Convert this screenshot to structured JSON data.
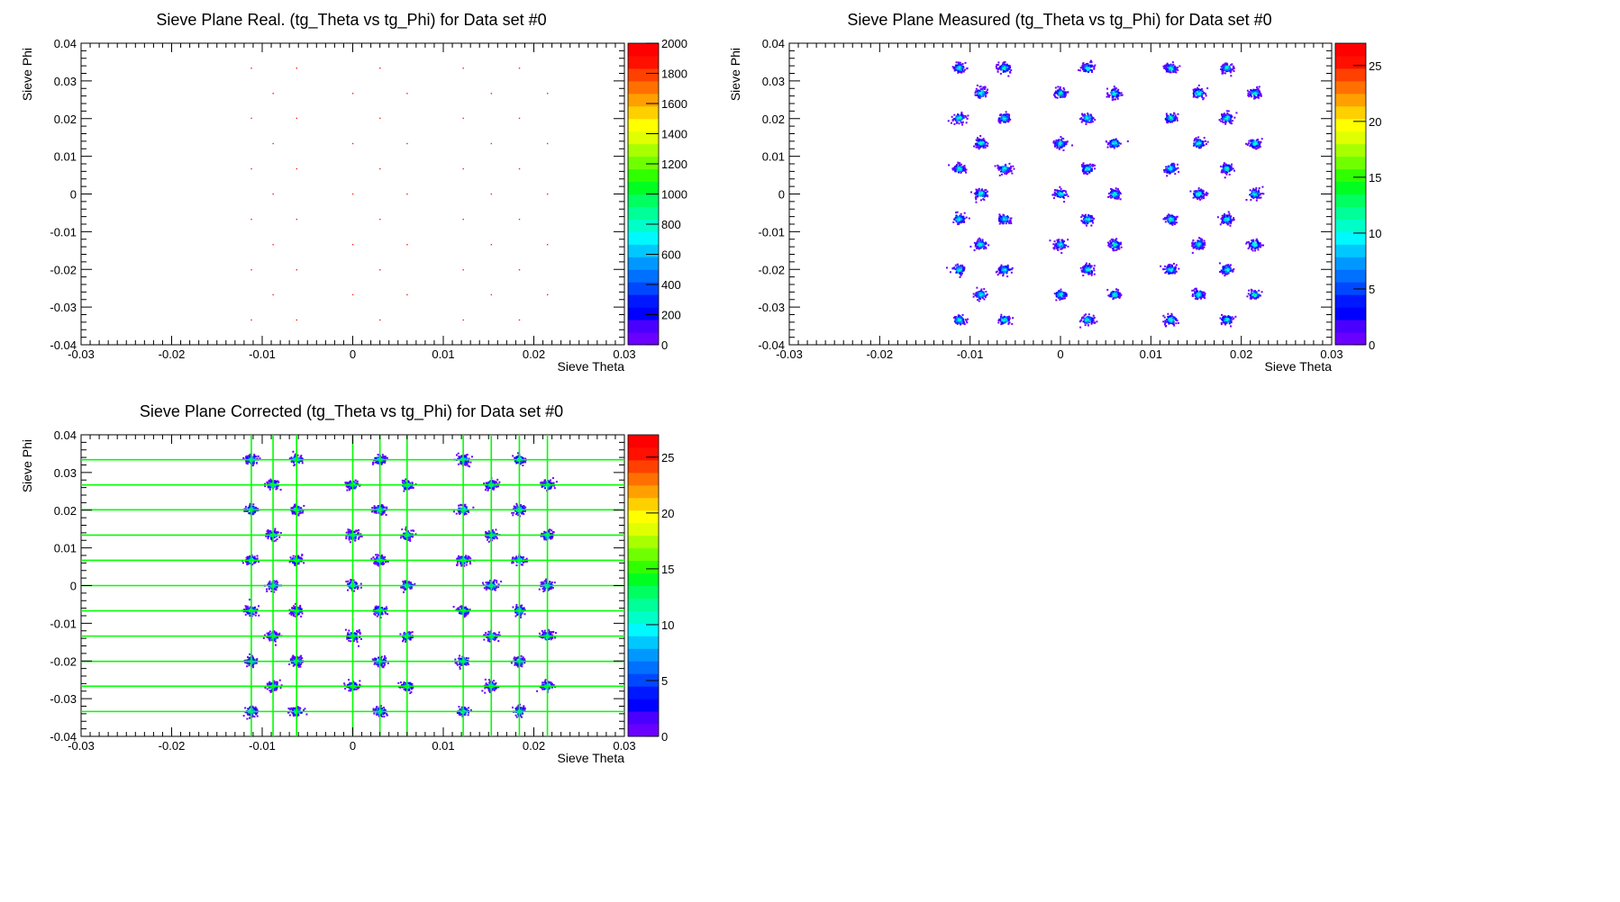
{
  "chart_data": [
    {
      "type": "heatmap",
      "title": "Sieve Plane Real. (tg_Theta vs tg_Phi) for Data set #0",
      "xlabel": "Sieve Theta",
      "ylabel": "Sieve Phi",
      "xlim": [
        -0.03,
        0.03
      ],
      "ylim": [
        -0.04,
        0.04
      ],
      "x_ticks": [
        "-0.03",
        "-0.02",
        "-0.01",
        "0",
        "0.01",
        "0.02",
        "0.03"
      ],
      "y_ticks": [
        "-0.04",
        "-0.03",
        "-0.02",
        "-0.01",
        "0",
        "0.01",
        "0.02",
        "0.03",
        "0.04"
      ],
      "z_range": [
        0,
        2000
      ],
      "z_ticks": [
        "0",
        "200",
        "400",
        "600",
        "800",
        "1000",
        "1200",
        "1400",
        "1600",
        "1800",
        "2000"
      ],
      "hole_theta": [
        -0.0112,
        -0.0088,
        -0.0062,
        0.0,
        0.003,
        0.006,
        0.0122,
        0.0153,
        0.0184,
        0.0215
      ],
      "hole_phi": [
        0.0334,
        0.0267,
        0.0201,
        0.0134,
        0.0067,
        0.0,
        -0.0067,
        -0.0134,
        -0.0201,
        -0.0267,
        -0.0334
      ],
      "marker": "point",
      "lines": false
    },
    {
      "type": "heatmap",
      "title": "Sieve Plane Measured (tg_Theta vs tg_Phi) for Data set #0",
      "xlabel": "Sieve Theta",
      "ylabel": "Sieve Phi",
      "xlim": [
        -0.03,
        0.03
      ],
      "ylim": [
        -0.04,
        0.04
      ],
      "x_ticks": [
        "-0.03",
        "-0.02",
        "-0.01",
        "0",
        "0.01",
        "0.02",
        "0.03"
      ],
      "y_ticks": [
        "-0.04",
        "-0.03",
        "-0.02",
        "-0.01",
        "0",
        "0.01",
        "0.02",
        "0.03",
        "0.04"
      ],
      "z_range": [
        0,
        27
      ],
      "z_ticks": [
        "0",
        "5",
        "10",
        "15",
        "20",
        "25"
      ],
      "hole_theta": [
        -0.0112,
        -0.0088,
        -0.0062,
        0.0,
        0.003,
        0.006,
        0.0122,
        0.0153,
        0.0184,
        0.0215
      ],
      "hole_phi": [
        0.0334,
        0.0267,
        0.0201,
        0.0134,
        0.0067,
        0.0,
        -0.0067,
        -0.0134,
        -0.0201,
        -0.0267,
        -0.0334
      ],
      "marker": "blob",
      "lines": false
    },
    {
      "type": "heatmap",
      "title": "Sieve Plane Corrected (tg_Theta vs tg_Phi) for Data set #0",
      "xlabel": "Sieve Theta",
      "ylabel": "Sieve Phi",
      "xlim": [
        -0.03,
        0.03
      ],
      "ylim": [
        -0.04,
        0.04
      ],
      "x_ticks": [
        "-0.03",
        "-0.02",
        "-0.01",
        "0",
        "0.01",
        "0.02",
        "0.03"
      ],
      "y_ticks": [
        "-0.04",
        "-0.03",
        "-0.02",
        "-0.01",
        "0",
        "0.01",
        "0.02",
        "0.03",
        "0.04"
      ],
      "z_range": [
        0,
        27
      ],
      "z_ticks": [
        "0",
        "5",
        "10",
        "15",
        "20",
        "25"
      ],
      "hole_theta": [
        -0.0112,
        -0.0088,
        -0.0062,
        0.0,
        0.003,
        0.006,
        0.0122,
        0.0153,
        0.0184,
        0.0215
      ],
      "hole_phi": [
        0.0334,
        0.0267,
        0.0201,
        0.0134,
        0.0067,
        0.0,
        -0.0067,
        -0.0134,
        -0.0201,
        -0.0267,
        -0.0334
      ],
      "marker": "blob",
      "lines": true,
      "line_color": "#00ff00"
    }
  ],
  "palette": [
    "#6a00ff",
    "#4a00ff",
    "#0000ff",
    "#0018ff",
    "#0048ff",
    "#0070ff",
    "#0098ff",
    "#00c8ff",
    "#00f8ff",
    "#00ffc8",
    "#00ff98",
    "#00ff60",
    "#00ff20",
    "#30ff00",
    "#70ff00",
    "#a8ff00",
    "#e0ff00",
    "#ffff00",
    "#ffd000",
    "#ffa000",
    "#ff7000",
    "#ff4000",
    "#ff1000",
    "#ff0000"
  ]
}
